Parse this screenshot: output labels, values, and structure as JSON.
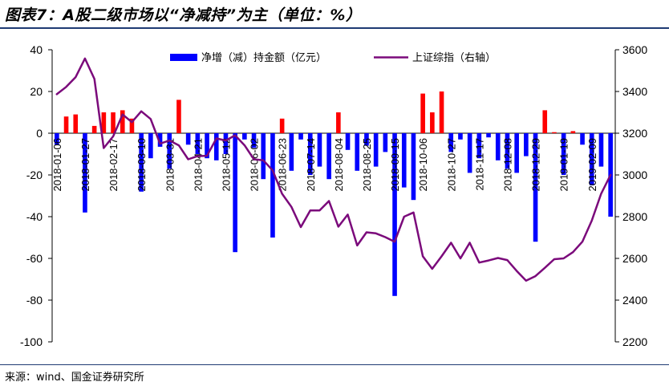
{
  "figure_title": "图表7：A股二级市场以“净减持”为主（单位：%）",
  "source_note": "来源：wind、国金证券研究所",
  "colors": {
    "bar_negative": "#0000ff",
    "bar_positive": "#ff0000",
    "line": "#7b0a7b",
    "rule": "#1f3b73"
  },
  "chart_data": {
    "type": "bar+line",
    "grid": false,
    "legend_position": "top",
    "left_axis": {
      "range": [
        -100,
        40
      ],
      "ticks": [
        "40",
        "20",
        "0",
        "-20",
        "-40",
        "-60",
        "-80",
        "-100"
      ]
    },
    "right_axis": {
      "range": [
        2200,
        3600
      ],
      "ticks": [
        "3600",
        "3400",
        "3200",
        "3000",
        "2800",
        "2600",
        "2400",
        "2200"
      ]
    },
    "categories": [
      "2018-01-06",
      "2018-01-13",
      "2018-01-20",
      "2018-01-27",
      "2018-02-03",
      "2018-02-10",
      "2018-02-17",
      "2018-02-24",
      "2018-03-03",
      "2018-03-10",
      "2018-03-17",
      "2018-03-24",
      "2018-03-31",
      "2018-04-07",
      "2018-04-14",
      "2018-04-21",
      "2018-04-28",
      "2018-05-05",
      "2018-05-12",
      "2018-05-19",
      "2018-05-26",
      "2018-06-02",
      "2018-06-09",
      "2018-06-16",
      "2018-06-23",
      "2018-06-30",
      "2018-07-07",
      "2018-07-14",
      "2018-07-21",
      "2018-07-28",
      "2018-08-04",
      "2018-08-11",
      "2018-08-18",
      "2018-08-25",
      "2018-09-01",
      "2018-09-08",
      "2018-09-15",
      "2018-09-22",
      "2018-09-29",
      "2018-10-06",
      "2018-10-13",
      "2018-10-20",
      "2018-10-27",
      "2018-11-03",
      "2018-11-10",
      "2018-11-17",
      "2018-11-24",
      "2018-12-01",
      "2018-12-08",
      "2018-12-15",
      "2018-12-22",
      "2018-12-29",
      "2019-01-05",
      "2019-01-12",
      "2019-01-19",
      "2019-01-26",
      "2019-02-02",
      "2019-02-09",
      "2019-02-16",
      "2019-02-23"
    ],
    "tick_labels": [
      "2018-01-06",
      "2018-01-27",
      "2018-02-17",
      "2018-03-10",
      "2018-03-31",
      "2018-04-21",
      "2018-05-12",
      "2018-06-02",
      "2018-06-23",
      "2018-07-14",
      "2018-08-04",
      "2018-08-25",
      "2018-09-15",
      "2018-10-06",
      "2018-10-27",
      "2018-11-17",
      "2018-12-08",
      "2018-12-29",
      "2019-01-19",
      "2019-02-09"
    ],
    "series": [
      {
        "name": "净增（减）持金额（亿元）",
        "type": "bar",
        "axis": "left",
        "values": [
          -5.5,
          8,
          9,
          -38,
          3.5,
          10,
          10,
          11,
          7,
          -28,
          -12,
          -6.5,
          -17,
          16,
          -5.5,
          -10,
          -12,
          -13,
          -10,
          -57,
          -3,
          -7,
          -22,
          -50,
          7,
          -18,
          -3,
          -20,
          -16,
          -22,
          10,
          -8,
          -18,
          -6,
          -16,
          -9,
          -78,
          -26,
          -32,
          19,
          10,
          20,
          -9,
          -3,
          -19,
          -12,
          -2,
          -13,
          -17,
          -19,
          -11,
          -52,
          11,
          0.5,
          -20,
          1,
          -5.5,
          -25,
          -16,
          -40
        ]
      },
      {
        "name": "上证综指（右轴）",
        "type": "line",
        "axis": "right",
        "values": [
          3387,
          3422,
          3469,
          3558,
          3460,
          3129,
          3185,
          3290,
          3253,
          3305,
          3268,
          3150,
          3165,
          3142,
          3075,
          3090,
          3092,
          3175,
          3165,
          3190,
          3142,
          3075,
          3070,
          3022,
          2910,
          2847,
          2750,
          2830,
          2830,
          2875,
          2752,
          2810,
          2662,
          2725,
          2720,
          2702,
          2680,
          2800,
          2820,
          2610,
          2550,
          2610,
          2675,
          2600,
          2675,
          2580,
          2590,
          2602,
          2592,
          2540,
          2493,
          2515,
          2555,
          2596,
          2600,
          2630,
          2680,
          2782,
          2910,
          3000
        ]
      }
    ]
  }
}
